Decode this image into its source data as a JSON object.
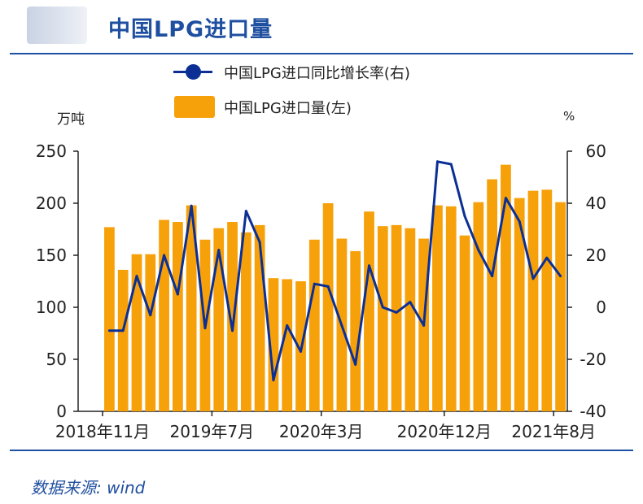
{
  "header": {
    "title": "中国LPG进口量"
  },
  "legend": {
    "line_label": "中国LPG进口同比增长率(右)",
    "bar_label": "中国LPG进口量(左)"
  },
  "axes": {
    "left_unit": "万吨",
    "right_unit": "%"
  },
  "footer": {
    "source": "数据来源: wind"
  },
  "colors": {
    "bar": "#f7a10a",
    "line": "#0b2f94",
    "accent": "#1f4fa0"
  },
  "chart_data": {
    "type": "bar+line",
    "x_tick_labels": [
      "2018年11月",
      "2019年7月",
      "2020年3月",
      "2020年12月",
      "2021年8月"
    ],
    "x_tick_indices": [
      0,
      8,
      16,
      25,
      33
    ],
    "left_axis": {
      "ylim": [
        0,
        250
      ],
      "ticks": [
        0,
        50,
        100,
        150,
        200,
        250
      ]
    },
    "right_axis": {
      "ylim": [
        -40,
        60
      ],
      "ticks": [
        -40,
        -20,
        0,
        20,
        40,
        60
      ]
    },
    "series": [
      {
        "name": "中国LPG进口量(左)",
        "type": "bar",
        "axis": "left",
        "values": [
          177,
          136,
          151,
          151,
          184,
          182,
          198,
          165,
          176,
          182,
          172,
          179,
          128,
          127,
          125,
          165,
          200,
          166,
          154,
          192,
          178,
          179,
          176,
          166,
          198,
          197,
          169,
          201,
          223,
          237,
          205,
          212,
          213,
          201
        ]
      },
      {
        "name": "中国LPG进口同比增长率(右)",
        "type": "line",
        "axis": "right",
        "values": [
          -9,
          -9,
          12,
          -3,
          20,
          5,
          39,
          -8,
          22,
          -9,
          37,
          25,
          -28,
          -7,
          -17,
          9,
          8,
          -7,
          -22,
          16,
          0,
          -2,
          2,
          -7,
          56,
          55,
          35,
          22,
          12,
          42,
          33,
          11,
          19,
          12
        ]
      }
    ]
  }
}
